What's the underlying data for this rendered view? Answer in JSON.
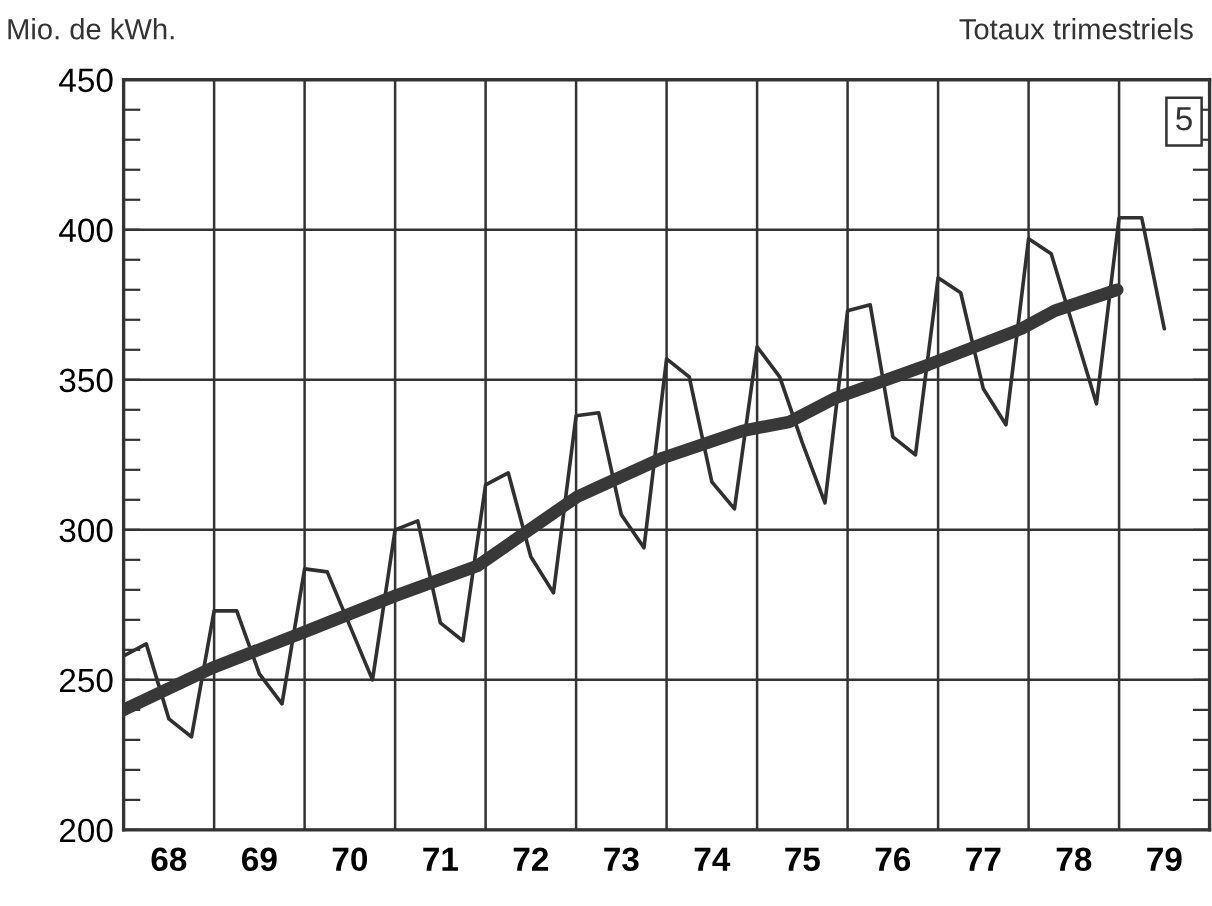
{
  "chart_data": {
    "type": "line",
    "ylabel": "Mio. de kWh.",
    "subtitle": "Totaux trimestriels",
    "annotations": [
      "5"
    ],
    "series": [
      {
        "color": "#303030",
        "x": [
          68,
          68.25,
          68.5,
          68.75,
          69,
          69.25,
          69.5,
          69.75,
          70,
          70.25,
          70.5,
          70.75,
          71,
          71.25,
          71.5,
          71.75,
          72,
          72.25,
          72.5,
          72.75,
          73,
          73.25,
          73.5,
          73.75,
          74,
          74.25,
          74.5,
          74.75,
          75,
          75.25,
          75.5,
          75.75,
          76,
          76.25,
          76.5,
          76.75,
          77,
          77.25,
          77.5,
          77.75,
          78,
          78.25,
          78.5,
          78.75,
          79,
          79.25,
          79.5
        ],
        "values": [
          258,
          262,
          237,
          231,
          273,
          273,
          252,
          242,
          287,
          286,
          268,
          250,
          300,
          303,
          269,
          263,
          315,
          319,
          291,
          279,
          338,
          339,
          305,
          294,
          357,
          351,
          316,
          307,
          361,
          351,
          329,
          309,
          373,
          375,
          331,
          325,
          384,
          379,
          347,
          335,
          397,
          392,
          367,
          342,
          404,
          404,
          367
        ]
      },
      {
        "color": "#383838",
        "x": [
          68,
          68.98,
          70,
          71,
          71.91,
          73.01,
          73.23,
          73.96,
          74.84,
          75.36,
          75.87,
          76.89,
          77.92,
          78.29,
          78.98
        ],
        "values": [
          240,
          254,
          266,
          278,
          288,
          311,
          314,
          324,
          333,
          336,
          344,
          355,
          367,
          373,
          380
        ]
      }
    ],
    "xlim": [
      68,
      80
    ],
    "xticks": [
      {
        "value": 68.5,
        "label": "68"
      },
      {
        "value": 69,
        "label": null
      },
      {
        "value": 69.5,
        "label": "69"
      },
      {
        "value": 70,
        "label": null
      },
      {
        "value": 70.5,
        "label": "70"
      },
      {
        "value": 71,
        "label": null
      },
      {
        "value": 71.5,
        "label": "71"
      },
      {
        "value": 72,
        "label": null
      },
      {
        "value": 72.5,
        "label": "72"
      },
      {
        "value": 73,
        "label": null
      },
      {
        "value": 73.5,
        "label": "73"
      },
      {
        "value": 74,
        "label": null
      },
      {
        "value": 74.5,
        "label": "74"
      },
      {
        "value": 75,
        "label": null
      },
      {
        "value": 75.5,
        "label": "75"
      },
      {
        "value": 76,
        "label": null
      },
      {
        "value": 76.5,
        "label": "76"
      },
      {
        "value": 77,
        "label": null
      },
      {
        "value": 77.5,
        "label": "77"
      },
      {
        "value": 78,
        "label": null
      },
      {
        "value": 78.5,
        "label": "78"
      },
      {
        "value": 79,
        "label": null
      },
      {
        "value": 79.5,
        "label": "79"
      }
    ],
    "ylim": [
      200,
      450
    ],
    "yticks": [
      200,
      {
        "value": 210,
        "label": null
      },
      {
        "value": 220,
        "label": null
      },
      {
        "value": 230,
        "label": null
      },
      {
        "value": 240,
        "label": null
      },
      250,
      {
        "value": 260,
        "label": null
      },
      {
        "value": 270,
        "label": null
      },
      {
        "value": 280,
        "label": null
      },
      {
        "value": 290,
        "label": null
      },
      300,
      {
        "value": 310,
        "label": null
      },
      {
        "value": 320,
        "label": null
      },
      {
        "value": 330,
        "label": null
      },
      {
        "value": 340,
        "label": null
      },
      350,
      {
        "value": 360,
        "label": null
      },
      {
        "value": 370,
        "label": null
      },
      {
        "value": 380,
        "label": null
      },
      {
        "value": 390,
        "label": null
      },
      400,
      {
        "value": 410,
        "label": null
      },
      {
        "value": 420,
        "label": null
      },
      {
        "value": 430,
        "label": null
      },
      {
        "value": 440,
        "label": null
      },
      450
    ],
    "grid": true,
    "legend": false,
    "marker": "none",
    "line_style": "solid"
  }
}
